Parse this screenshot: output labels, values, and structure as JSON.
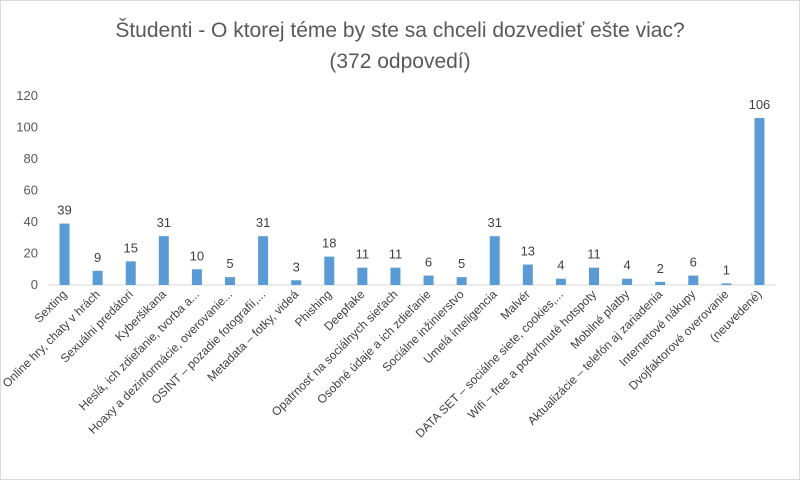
{
  "chart_data": {
    "type": "bar",
    "title": "Študenti - O ktorej téme by ste sa chceli dozvedieť ešte viac?",
    "subtitle": "(372 odpovedí)",
    "xlabel": "",
    "ylabel": "",
    "ylim": [
      0,
      120
    ],
    "yticks": [
      0,
      20,
      40,
      60,
      80,
      100,
      120
    ],
    "grid": false,
    "legend": "none",
    "bar_color": "#5b9bd5",
    "categories": [
      "Sexting",
      "Online hry, chaty v hrách",
      "Sexuálni predátori",
      "Kyberšikana",
      "Heslá, ich zdieľanie, tvorba a...",
      "Hoaxy a dezinformácie, overovanie...",
      "OSINT – pozadie fotografií,...",
      "Metadata – fotky, videá",
      "Phishing",
      "Deepfake",
      "Opatrnosť na sociálnych sieťach",
      "Osobné údaje a ich zdieľanie",
      "Sociálne inžinierstvo",
      "Umelá inteligencia",
      "Malvér",
      "DATA SET – sociálne siete, cookies,...",
      "Wifi – free a podvrhnuté hotspoty",
      "Mobilné platby",
      "Aktualizácie – telefón aj zariadenia",
      "Internetové nákupy",
      "Dvojfaktorové overovanie",
      "(neuvedené)"
    ],
    "values": [
      39,
      9,
      15,
      31,
      10,
      5,
      31,
      3,
      18,
      11,
      11,
      6,
      5,
      31,
      13,
      4,
      11,
      4,
      2,
      6,
      1,
      106
    ]
  }
}
